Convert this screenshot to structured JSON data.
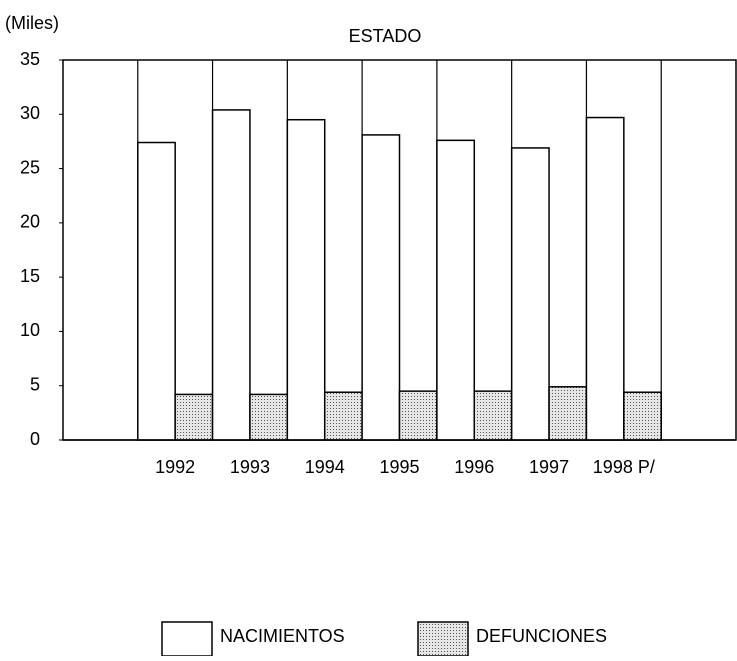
{
  "chart_data": {
    "type": "bar",
    "title": "ESTADO",
    "y_axis_label": "(Miles)",
    "categories": [
      null,
      "1992",
      "1993",
      "1994",
      "1995",
      "1996",
      "1997",
      "1998 P/",
      null
    ],
    "series": [
      {
        "name": "NACIMIENTOS",
        "color": "#ffffff",
        "values": [
          null,
          27.4,
          30.4,
          29.5,
          28.1,
          27.6,
          26.9,
          29.7,
          null
        ]
      },
      {
        "name": "DEFUNCIONES",
        "color": "#c4c4c4",
        "values": [
          null,
          4.2,
          4.2,
          4.4,
          4.5,
          4.5,
          4.9,
          4.4,
          null
        ]
      }
    ],
    "ylim": [
      0,
      35
    ],
    "yticks": [
      0,
      5,
      10,
      15,
      20,
      25,
      30,
      35
    ],
    "legend": "bottom"
  }
}
